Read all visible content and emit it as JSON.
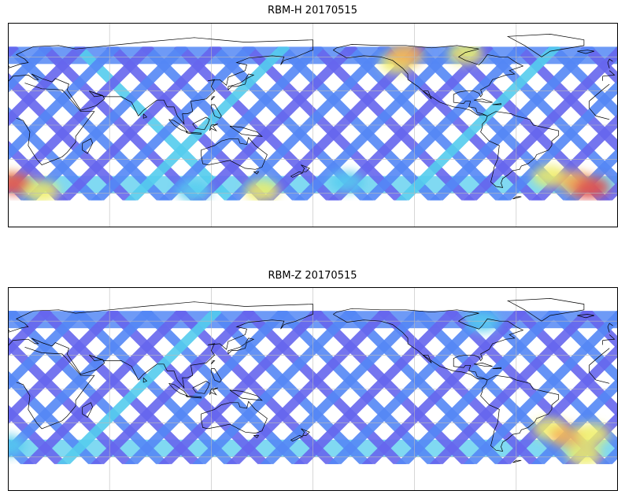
{
  "panels": [
    {
      "title": "RBM-H 20170515",
      "tracks": {
        "desc": [
          "blue",
          "blue",
          "purple",
          "blue",
          "purple",
          "blue",
          "purple",
          "blue",
          "purple",
          "blue",
          "purple",
          "cyan",
          "purple",
          "blue",
          "purple",
          "blue",
          "purple",
          "blue",
          "purple",
          "blue",
          "purple",
          "blue",
          "purple",
          "blue",
          "purple",
          "blue",
          "purple",
          "blue",
          "purple",
          "blue",
          "purple",
          "blue",
          "purple",
          "blue",
          "purple",
          "blue"
        ],
        "asc": [
          "purple",
          "blue",
          "purple",
          "blue",
          "purple",
          "blue",
          "purple",
          "blue",
          "purple",
          "blue",
          "purple",
          "blue",
          "cyan",
          "blue",
          "purple",
          "blue",
          "purple",
          "blue",
          "purple",
          "blue",
          "cyan",
          "blue",
          "purple",
          "blue",
          "purple",
          "blue",
          "purple",
          "blue",
          "purple",
          "blue",
          "purple",
          "blue",
          "purple",
          "blue",
          "purple",
          "blue"
        ]
      },
      "hotspots": [
        {
          "lon": 0,
          "lat": -50,
          "color": "orange"
        },
        {
          "lon": -20,
          "lat": -55,
          "color": "red"
        },
        {
          "lon": -130,
          "lat": 55,
          "color": "yellow"
        },
        {
          "lon": -125,
          "lat": 62,
          "color": "orange"
        },
        {
          "lon": -90,
          "lat": 63,
          "color": "yellow"
        },
        {
          "lon": -40,
          "lat": -45,
          "color": "yellow"
        },
        {
          "lon": -25,
          "lat": -50,
          "color": "orange"
        },
        {
          "lon": -15,
          "lat": -55,
          "color": "red"
        },
        {
          "lon": 5,
          "lat": -52,
          "color": "red"
        },
        {
          "lon": 20,
          "lat": -58,
          "color": "yellow"
        },
        {
          "lon": 150,
          "lat": -58,
          "color": "yellow"
        },
        {
          "lon": 110,
          "lat": -58,
          "color": "cyan"
        },
        {
          "lon": -160,
          "lat": -50,
          "color": "cyan"
        }
      ]
    },
    {
      "title": "RBM-Z 20170515",
      "tracks": {
        "desc": [
          "purple",
          "blue",
          "purple",
          "blue",
          "purple",
          "blue",
          "purple",
          "blue",
          "purple",
          "blue",
          "purple",
          "blue",
          "purple",
          "blue",
          "purple",
          "blue",
          "purple",
          "blue",
          "purple",
          "blue",
          "purple",
          "blue",
          "purple",
          "blue",
          "purple",
          "blue",
          "purple",
          "blue",
          "purple",
          "blue",
          "purple",
          "blue",
          "purple",
          "blue",
          "purple",
          "blue"
        ],
        "asc": [
          "blue",
          "purple",
          "blue",
          "purple",
          "blue",
          "purple",
          "blue",
          "purple",
          "blue",
          "purple",
          "cyan",
          "purple",
          "blue",
          "purple",
          "blue",
          "purple",
          "blue",
          "purple",
          "blue",
          "purple",
          "blue",
          "purple",
          "blue",
          "purple",
          "blue",
          "purple",
          "blue",
          "purple",
          "blue",
          "purple",
          "blue",
          "purple",
          "blue",
          "purple",
          "blue",
          "purple"
        ]
      },
      "hotspots": [
        {
          "lon": -40,
          "lat": -35,
          "color": "yellow"
        },
        {
          "lon": -30,
          "lat": -42,
          "color": "orange"
        },
        {
          "lon": -15,
          "lat": -40,
          "color": "yellow"
        },
        {
          "lon": -80,
          "lat": 60,
          "color": "cyan"
        },
        {
          "lon": 0,
          "lat": -50,
          "color": "cyan"
        },
        {
          "lon": -20,
          "lat": -58,
          "color": "yellow"
        }
      ]
    }
  ],
  "palette": {
    "purple": "#6666ee",
    "blue": "#5588f5",
    "cyan": "#55ccee",
    "green": "#88ee99",
    "yellow": "#eeee66",
    "orange": "#f5b055",
    "red": "#dd5555",
    "land": "#000000",
    "grid": "#bbbbbb"
  },
  "map": {
    "central_lon": 180,
    "lon_range": [
      -180,
      180
    ],
    "lat_range": [
      -90,
      90
    ],
    "swath_lat_range": [
      -60,
      60
    ],
    "gridlines_lon": [
      -120,
      -60,
      0,
      60,
      120
    ],
    "gridlines_lat": [
      -60,
      -30,
      0,
      30,
      60
    ]
  }
}
